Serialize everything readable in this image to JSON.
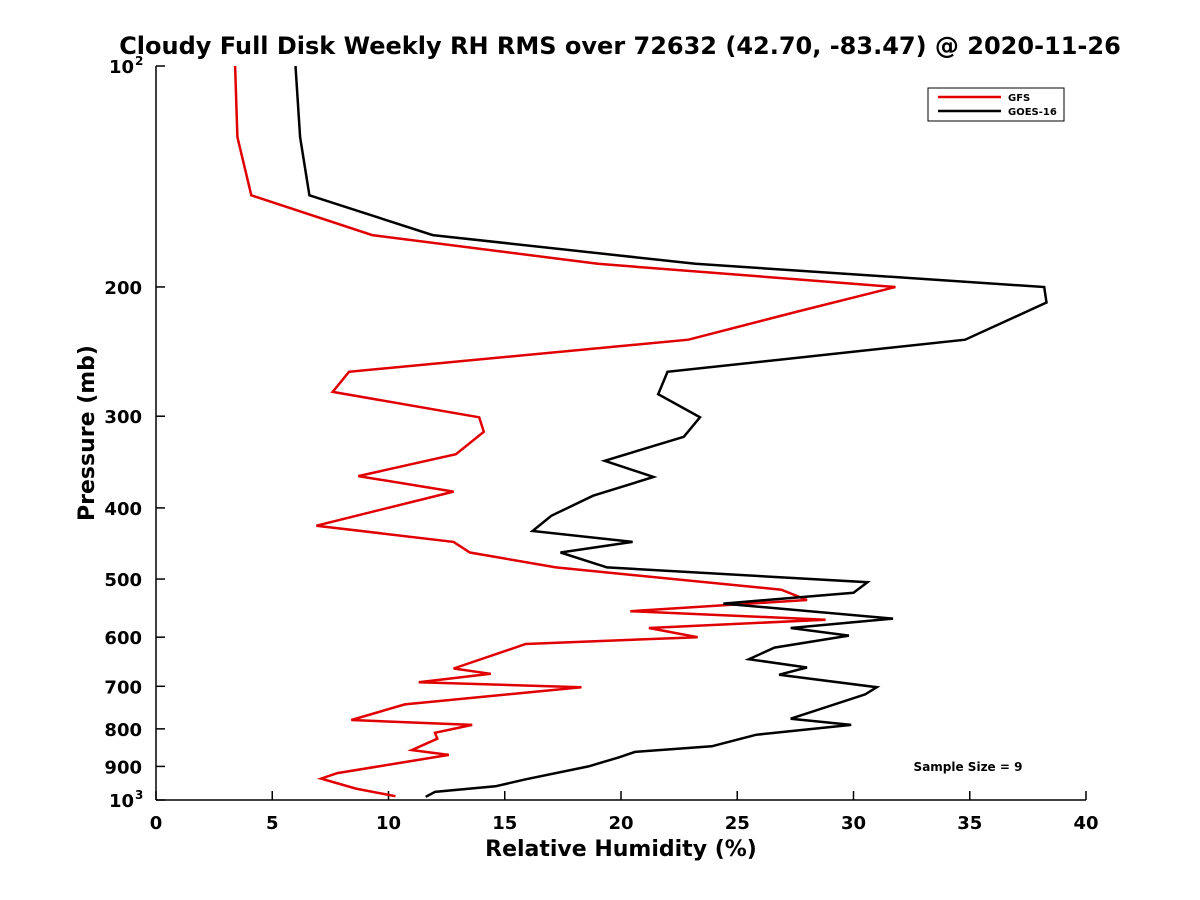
{
  "chart_data": {
    "type": "line",
    "title": "Cloudy Full Disk Weekly RH RMS over 72632 (42.70, -83.47) @ 2020-11-26",
    "xlabel": "Relative Humidity (%)",
    "ylabel": "Pressure (mb)",
    "xlim": [
      0,
      40
    ],
    "ylim": [
      100,
      1000
    ],
    "yscale": "log",
    "y_reversed": true,
    "xticks": [
      0,
      5,
      10,
      15,
      20,
      25,
      30,
      35,
      40
    ],
    "yticks": [
      {
        "value": 100,
        "base": "10",
        "exp": "2"
      },
      {
        "value": 200,
        "label": "200"
      },
      {
        "value": 300,
        "label": "300"
      },
      {
        "value": 400,
        "label": "400"
      },
      {
        "value": 500,
        "label": "500"
      },
      {
        "value": 600,
        "label": "600"
      },
      {
        "value": 700,
        "label": "700"
      },
      {
        "value": 800,
        "label": "800"
      },
      {
        "value": 900,
        "label": "900"
      },
      {
        "value": 1000,
        "base": "10",
        "exp": "3"
      }
    ],
    "grid": false,
    "legend_position": "top-right",
    "annotation": "Sample Size = 9",
    "series": [
      {
        "name": "GFS",
        "color": "#e00000",
        "points": [
          [
            3.4,
            100
          ],
          [
            3.5,
            125
          ],
          [
            4.1,
            150
          ],
          [
            9.3,
            170
          ],
          [
            19.0,
            186
          ],
          [
            31.8,
            200
          ],
          [
            27.6,
            216
          ],
          [
            22.9,
            236
          ],
          [
            8.3,
            261
          ],
          [
            7.6,
            278
          ],
          [
            13.9,
            301
          ],
          [
            14.1,
            315
          ],
          [
            12.9,
            338
          ],
          [
            8.7,
            362
          ],
          [
            12.8,
            380
          ],
          [
            6.9,
            423
          ],
          [
            12.8,
            445
          ],
          [
            13.5,
            460
          ],
          [
            17.2,
            482
          ],
          [
            26.9,
            517
          ],
          [
            28.0,
            534
          ],
          [
            20.4,
            553
          ],
          [
            28.8,
            568
          ],
          [
            21.2,
            583
          ],
          [
            23.3,
            600
          ],
          [
            15.9,
            613
          ],
          [
            12.8,
            662
          ],
          [
            14.4,
            673
          ],
          [
            11.3,
            691
          ],
          [
            18.3,
            702
          ],
          [
            10.7,
            741
          ],
          [
            8.4,
            778
          ],
          [
            13.6,
            790
          ],
          [
            12.0,
            810
          ],
          [
            12.1,
            825
          ],
          [
            11.0,
            855
          ],
          [
            12.6,
            868
          ],
          [
            7.8,
            919
          ],
          [
            7.1,
            935
          ],
          [
            8.6,
            965
          ],
          [
            10.3,
            988
          ]
        ]
      },
      {
        "name": "GOES-16",
        "color": "#000000",
        "points": [
          [
            6.0,
            100
          ],
          [
            6.2,
            125
          ],
          [
            6.6,
            150
          ],
          [
            11.9,
            170
          ],
          [
            23.2,
            186
          ],
          [
            38.2,
            200
          ],
          [
            38.3,
            210
          ],
          [
            34.8,
            236
          ],
          [
            22.0,
            261
          ],
          [
            21.6,
            280
          ],
          [
            23.4,
            301
          ],
          [
            22.7,
            320
          ],
          [
            19.3,
            345
          ],
          [
            21.4,
            363
          ],
          [
            18.8,
            385
          ],
          [
            17.0,
            410
          ],
          [
            16.2,
            430
          ],
          [
            20.5,
            445
          ],
          [
            17.4,
            460
          ],
          [
            19.4,
            482
          ],
          [
            30.6,
            505
          ],
          [
            30.0,
            522
          ],
          [
            24.4,
            540
          ],
          [
            31.7,
            566
          ],
          [
            27.3,
            583
          ],
          [
            29.8,
            597
          ],
          [
            26.6,
            620
          ],
          [
            25.5,
            643
          ],
          [
            28.0,
            660
          ],
          [
            26.8,
            675
          ],
          [
            31.0,
            702
          ],
          [
            30.5,
            718
          ],
          [
            27.3,
            775
          ],
          [
            29.9,
            790
          ],
          [
            25.8,
            815
          ],
          [
            23.9,
            845
          ],
          [
            20.6,
            860
          ],
          [
            19.9,
            875
          ],
          [
            18.6,
            900
          ],
          [
            15.9,
            937
          ],
          [
            14.6,
            958
          ],
          [
            12.0,
            975
          ],
          [
            11.6,
            990
          ]
        ]
      }
    ]
  }
}
